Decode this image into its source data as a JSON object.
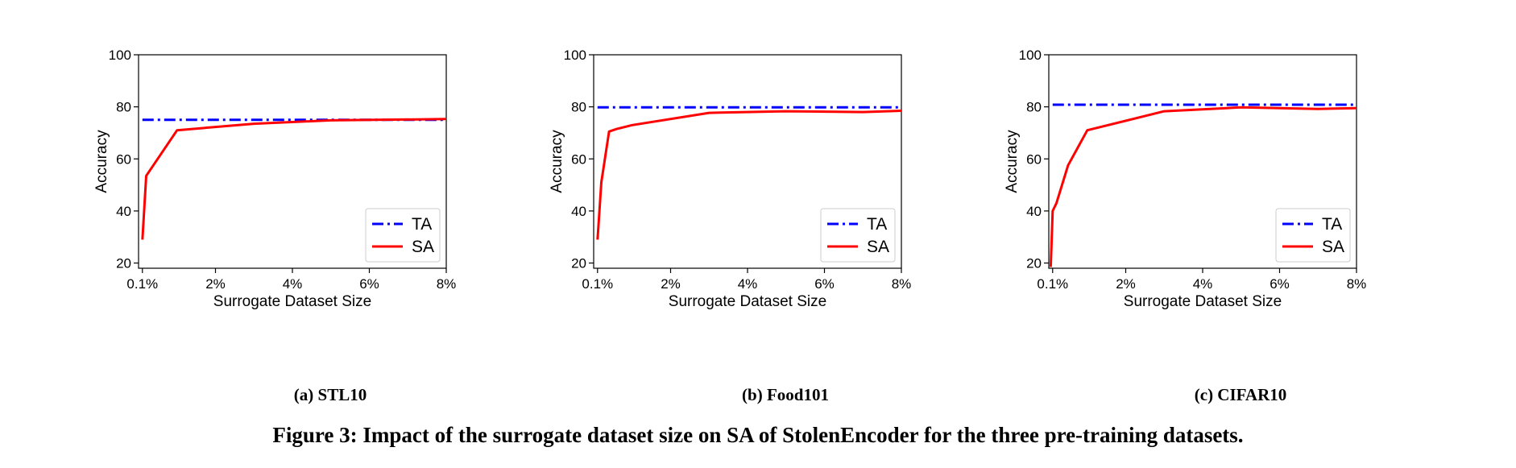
{
  "chart_data": [
    {
      "type": "line",
      "subcaption": "(a) STL10",
      "xlabel": "Surrogate Dataset Size",
      "ylabel": "Accuracy",
      "xlim": [
        0.0,
        8.0
      ],
      "ylim": [
        18,
        100
      ],
      "xticks": [
        {
          "v": 0.1,
          "label": "0.1%"
        },
        {
          "v": 2,
          "label": "2%"
        },
        {
          "v": 4,
          "label": "4%"
        },
        {
          "v": 6,
          "label": "6%"
        },
        {
          "v": 8,
          "label": "8%"
        }
      ],
      "yticks": [
        20,
        40,
        60,
        80,
        100
      ],
      "legend": "lower right",
      "series": [
        {
          "name": "TA",
          "color": "#0000ff",
          "style": "dashdot",
          "x": [
            0.1,
            8
          ],
          "y": [
            75,
            75
          ]
        },
        {
          "name": "SA",
          "color": "#ff0000",
          "style": "solid",
          "x": [
            0.1,
            0.2,
            1,
            3,
            5,
            8
          ],
          "y": [
            29,
            53.5,
            71,
            73.5,
            74.8,
            75.3
          ]
        }
      ]
    },
    {
      "type": "line",
      "subcaption": "(b) Food101",
      "xlabel": "Surrogate Dataset Size",
      "ylabel": "Accuracy",
      "xlim": [
        0.0,
        8.0
      ],
      "ylim": [
        18,
        100
      ],
      "xticks": [
        {
          "v": 0.1,
          "label": "0.1%"
        },
        {
          "v": 2,
          "label": "2%"
        },
        {
          "v": 4,
          "label": "4%"
        },
        {
          "v": 6,
          "label": "6%"
        },
        {
          "v": 8,
          "label": "8%"
        }
      ],
      "yticks": [
        20,
        40,
        60,
        80,
        100
      ],
      "legend": "lower right",
      "series": [
        {
          "name": "TA",
          "color": "#0000ff",
          "style": "dashdot",
          "x": [
            0.1,
            8
          ],
          "y": [
            79.8,
            79.8
          ]
        },
        {
          "name": "SA",
          "color": "#ff0000",
          "style": "solid",
          "x": [
            0.1,
            0.2,
            0.4,
            0.6,
            1,
            3,
            5,
            7,
            8
          ],
          "y": [
            29,
            51,
            70.5,
            71.5,
            73,
            77.7,
            78.3,
            78,
            78.5
          ]
        }
      ]
    },
    {
      "type": "line",
      "subcaption": "(c) CIFAR10",
      "xlabel": "Surrogate Dataset Size",
      "ylabel": "Accuracy",
      "xlim": [
        0.0,
        8.0
      ],
      "ylim": [
        18,
        100
      ],
      "xticks": [
        {
          "v": 0.1,
          "label": "0.1%"
        },
        {
          "v": 2,
          "label": "2%"
        },
        {
          "v": 4,
          "label": "4%"
        },
        {
          "v": 6,
          "label": "6%"
        },
        {
          "v": 8,
          "label": "8%"
        }
      ],
      "yticks": [
        20,
        40,
        60,
        80,
        100
      ],
      "legend": "lower right",
      "series": [
        {
          "name": "TA",
          "color": "#0000ff",
          "style": "dashdot",
          "x": [
            0.1,
            8
          ],
          "y": [
            80.8,
            80.8
          ]
        },
        {
          "name": "SA",
          "color": "#ff0000",
          "style": "solid",
          "x": [
            0.05,
            0.1,
            0.2,
            0.5,
            1,
            3,
            5,
            7,
            8
          ],
          "y": [
            18.5,
            40,
            43,
            57.5,
            71,
            78.3,
            79.8,
            79.2,
            79.5
          ]
        }
      ]
    }
  ],
  "caption": "Figure 3: Impact of the surrogate dataset size on SA of StolenEncoder for the three pre-training datasets."
}
